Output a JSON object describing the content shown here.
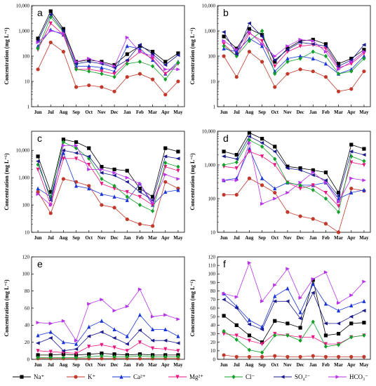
{
  "figure": {
    "legend": [
      {
        "name": "Na⁺",
        "color": "#000000",
        "marker": "square"
      },
      {
        "name": "K⁺",
        "color": "#c0392b",
        "marker": "circle"
      },
      {
        "name": "Ca²⁺",
        "color": "#1a35d6",
        "marker": "triangle"
      },
      {
        "name": "Mg²⁺",
        "color": "#e8177f",
        "marker": "triangle-down"
      },
      {
        "name": "Cl⁻",
        "color": "#13a02a",
        "marker": "diamond"
      },
      {
        "name": "SO₄²⁻",
        "color": "#1a1a8e",
        "marker": "triangle-left"
      },
      {
        "name": "HCO₃⁻",
        "color": "#b833e8",
        "marker": "triangle-right"
      }
    ]
  },
  "chart_data": [
    {
      "panel": "a",
      "type": "line",
      "scale": "log",
      "ylim": [
        1,
        10000
      ],
      "yticks": [
        "1",
        "10",
        "100",
        "1,000",
        "10,000"
      ],
      "ylabel": "Concentration (mg L⁻¹)",
      "categories": [
        "Jun",
        "Jul",
        "Aug",
        "Sep",
        "Oct",
        "Nov",
        "Dec",
        "Jan",
        "Feb",
        "Mar",
        "Apr",
        "May"
      ],
      "series": [
        {
          "name": "Na⁺",
          "values": [
            500,
            6000,
            1200,
            60,
            70,
            60,
            45,
            120,
            250,
            150,
            60,
            130
          ]
        },
        {
          "name": "K⁺",
          "values": [
            30,
            350,
            150,
            6,
            7,
            6,
            4,
            15,
            20,
            12,
            3,
            10
          ]
        },
        {
          "name": "Ca²⁺",
          "values": [
            250,
            1100,
            700,
            40,
            40,
            35,
            25,
            250,
            200,
            70,
            20,
            60
          ]
        },
        {
          "name": "Mg²⁺",
          "values": [
            180,
            2000,
            700,
            30,
            30,
            25,
            20,
            60,
            150,
            80,
            20,
            50
          ]
        },
        {
          "name": "Cl⁻",
          "values": [
            200,
            3500,
            900,
            30,
            25,
            20,
            15,
            50,
            60,
            40,
            12,
            55
          ]
        },
        {
          "name": "SO₄²⁻",
          "values": [
            400,
            4500,
            1000,
            50,
            60,
            50,
            35,
            70,
            280,
            120,
            45,
            110
          ]
        },
        {
          "name": "HCO₃⁻",
          "values": [
            350,
            1000,
            800,
            60,
            80,
            55,
            40,
            550,
            150,
            100,
            30,
            30
          ]
        }
      ]
    },
    {
      "panel": "b",
      "type": "line",
      "scale": "log",
      "ylim": [
        1,
        10000
      ],
      "yticks": [
        "1",
        "10",
        "100",
        "1,000",
        "10,000"
      ],
      "ylabel": "Concentration (mg L⁻¹)",
      "categories": [
        "Jun",
        "Jul",
        "Aug",
        "Sep",
        "Oct",
        "Nov",
        "Dec",
        "Jan",
        "Feb",
        "Mar",
        "Apr",
        "May"
      ],
      "series": [
        {
          "name": "Na⁺",
          "values": [
            600,
            200,
            1200,
            700,
            60,
            200,
            400,
            450,
            300,
            50,
            80,
            180
          ]
        },
        {
          "name": "K⁺",
          "values": [
            100,
            15,
            150,
            60,
            6,
            20,
            30,
            25,
            15,
            4,
            5,
            25
          ]
        },
        {
          "name": "Ca²⁺",
          "values": [
            200,
            150,
            500,
            250,
            25,
            80,
            100,
            80,
            50,
            20,
            30,
            100
          ]
        },
        {
          "name": "Mg²⁺",
          "values": [
            300,
            100,
            800,
            400,
            40,
            150,
            250,
            280,
            200,
            35,
            50,
            130
          ]
        },
        {
          "name": "Cl⁻",
          "values": [
            250,
            100,
            400,
            1000,
            20,
            60,
            80,
            150,
            100,
            20,
            25,
            80
          ]
        },
        {
          "name": "SO₄²⁻",
          "values": [
            900,
            120,
            2000,
            600,
            70,
            180,
            350,
            300,
            250,
            40,
            70,
            280
          ]
        },
        {
          "name": "HCO₃⁻",
          "values": [
            400,
            180,
            900,
            300,
            100,
            250,
            450,
            400,
            150,
            30,
            60,
            150
          ]
        }
      ]
    },
    {
      "panel": "c",
      "type": "line",
      "scale": "log",
      "ylim": [
        10,
        50000
      ],
      "yticks": [
        "10",
        "100",
        "1,000",
        "10,000"
      ],
      "ylabel": "Concentration (mg L⁻¹)",
      "categories": [
        "Jun",
        "Jul",
        "Aug",
        "Sep",
        "Oct",
        "Nov",
        "Dec",
        "Jan",
        "Feb",
        "Mar",
        "Apr",
        "May"
      ],
      "series": [
        {
          "name": "Na⁺",
          "values": [
            6000,
            300,
            25000,
            20000,
            12000,
            2500,
            2000,
            1800,
            400,
            200,
            12000,
            9000
          ]
        },
        {
          "name": "K⁺",
          "values": [
            300,
            50,
            900,
            700,
            500,
            100,
            80,
            30,
            20,
            17,
            700,
            400
          ]
        },
        {
          "name": "Ca²⁺",
          "values": [
            400,
            200,
            8000,
            500,
            400,
            250,
            200,
            150,
            600,
            100,
            300,
            350
          ]
        },
        {
          "name": "Mg²⁺",
          "values": [
            2000,
            100,
            5000,
            5000,
            3000,
            600,
            400,
            300,
            200,
            100,
            2500,
            1800
          ]
        },
        {
          "name": "Cl⁻",
          "values": [
            3000,
            200,
            20000,
            12000,
            5000,
            900,
            500,
            200,
            100,
            60,
            3500,
            2500
          ]
        },
        {
          "name": "SO₄²⁻",
          "values": [
            4000,
            150,
            10000,
            8000,
            6000,
            1500,
            1200,
            700,
            300,
            150,
            6000,
            5000
          ]
        },
        {
          "name": "HCO₃⁻",
          "values": [
            250,
            100,
            15000,
            15000,
            2000,
            2000,
            1500,
            1000,
            600,
            120,
            1300,
            900
          ]
        }
      ]
    },
    {
      "panel": "d",
      "type": "line",
      "scale": "log",
      "ylim": [
        10,
        10000
      ],
      "yticks": [
        "10",
        "100",
        "1,000",
        "10,000"
      ],
      "ylabel": "Concentration (mg L⁻¹)",
      "categories": [
        "Jun",
        "Jul",
        "Aug",
        "Sep",
        "Oct",
        "Nov",
        "Dec",
        "Jan",
        "Feb",
        "Mar",
        "Apr",
        "May"
      ],
      "series": [
        {
          "name": "Na⁺",
          "values": [
            2500,
            2000,
            9000,
            6000,
            3500,
            900,
            800,
            700,
            600,
            150,
            4000,
            3000
          ]
        },
        {
          "name": "K⁺",
          "values": [
            130,
            130,
            400,
            250,
            150,
            40,
            30,
            25,
            18,
            10,
            200,
            170
          ]
        },
        {
          "name": "Ca²⁺",
          "values": [
            350,
            400,
            3000,
            400,
            200,
            300,
            250,
            250,
            300,
            100,
            150,
            180
          ]
        },
        {
          "name": "Mg²⁺",
          "values": [
            900,
            800,
            2500,
            1800,
            1000,
            300,
            200,
            250,
            150,
            60,
            1200,
            1000
          ]
        },
        {
          "name": "Cl⁻",
          "values": [
            1000,
            1200,
            5500,
            3500,
            1500,
            300,
            250,
            180,
            100,
            40,
            1800,
            1300
          ]
        },
        {
          "name": "SO₄²⁻",
          "values": [
            1800,
            1500,
            7000,
            4500,
            2500,
            800,
            700,
            500,
            350,
            120,
            2500,
            2000
          ]
        },
        {
          "name": "HCO₃⁻",
          "values": [
            350,
            350,
            4500,
            70,
            100,
            150,
            300,
            600,
            300,
            80,
            400,
            350
          ]
        }
      ]
    },
    {
      "panel": "e",
      "type": "line",
      "scale": "linear",
      "ylim": [
        0,
        120
      ],
      "yticks": [
        "0",
        "20",
        "40",
        "60",
        "80",
        "100",
        "120"
      ],
      "ylabel": "Concentration (mg L⁻¹)",
      "categories": [
        "Jun",
        "Jul",
        "Aug",
        "Sep",
        "Oct",
        "Nov",
        "Dec",
        "Jan",
        "Feb",
        "Mar",
        "Apr",
        "May"
      ],
      "series": [
        {
          "name": "Na⁺",
          "values": [
            5,
            5,
            6,
            5,
            6,
            7,
            6,
            5,
            6,
            5,
            5,
            5
          ]
        },
        {
          "name": "K⁺",
          "values": [
            1,
            1,
            1,
            1,
            1,
            1,
            1,
            1,
            1,
            1,
            1,
            1
          ]
        },
        {
          "name": "Ca²⁺",
          "values": [
            28,
            32,
            20,
            18,
            38,
            45,
            35,
            27,
            52,
            35,
            35,
            27
          ]
        },
        {
          "name": "Mg²⁺",
          "values": [
            10,
            9,
            8,
            7,
            15,
            17,
            14,
            10,
            20,
            13,
            12,
            10
          ]
        },
        {
          "name": "Cl⁻",
          "values": [
            2,
            2,
            2,
            2,
            3,
            4,
            3,
            3,
            4,
            3,
            3,
            3
          ]
        },
        {
          "name": "SO₄²⁻",
          "values": [
            19,
            25,
            10,
            12,
            27,
            32,
            25,
            18,
            34,
            22,
            22,
            19
          ]
        },
        {
          "name": "HCO₃⁻",
          "values": [
            43,
            42,
            45,
            22,
            65,
            70,
            57,
            62,
            82,
            50,
            52,
            47
          ]
        }
      ]
    },
    {
      "panel": "f",
      "type": "line",
      "scale": "linear",
      "ylim": [
        0,
        120
      ],
      "yticks": [
        "0",
        "10",
        "20",
        "30",
        "40",
        "50",
        "60",
        "70",
        "80",
        "90",
        "100",
        "110",
        "120"
      ],
      "ylabel": "Concentration (mg L⁻¹)",
      "categories": [
        "Jun",
        "Jul",
        "Aug",
        "Sep",
        "Oct",
        "Nov",
        "Dec",
        "Jan",
        "Feb",
        "Mar",
        "Apr",
        "May"
      ],
      "series": [
        {
          "name": "Na⁺",
          "values": [
            51,
            40,
            28,
            20,
            45,
            42,
            37,
            93,
            28,
            30,
            42,
            43
          ]
        },
        {
          "name": "K⁺",
          "values": [
            5,
            3,
            3,
            3,
            4,
            3,
            3,
            4,
            3,
            3,
            3,
            3
          ]
        },
        {
          "name": "Ca²⁺",
          "values": [
            77,
            62,
            46,
            38,
            74,
            83,
            55,
            88,
            65,
            57,
            63,
            68
          ]
        },
        {
          "name": "Mg²⁺",
          "values": [
            30,
            28,
            22,
            18,
            30,
            28,
            26,
            26,
            18,
            18,
            26,
            28
          ]
        },
        {
          "name": "Cl⁻",
          "values": [
            33,
            23,
            11,
            8,
            28,
            28,
            22,
            44,
            15,
            17,
            26,
            28
          ]
        },
        {
          "name": "SO₄²⁻",
          "values": [
            70,
            60,
            41,
            35,
            68,
            68,
            48,
            78,
            42,
            42,
            50,
            57
          ]
        },
        {
          "name": "HCO₃⁻",
          "values": [
            77,
            73,
            113,
            68,
            87,
            106,
            72,
            94,
            102,
            66,
            75,
            91
          ]
        }
      ]
    }
  ]
}
